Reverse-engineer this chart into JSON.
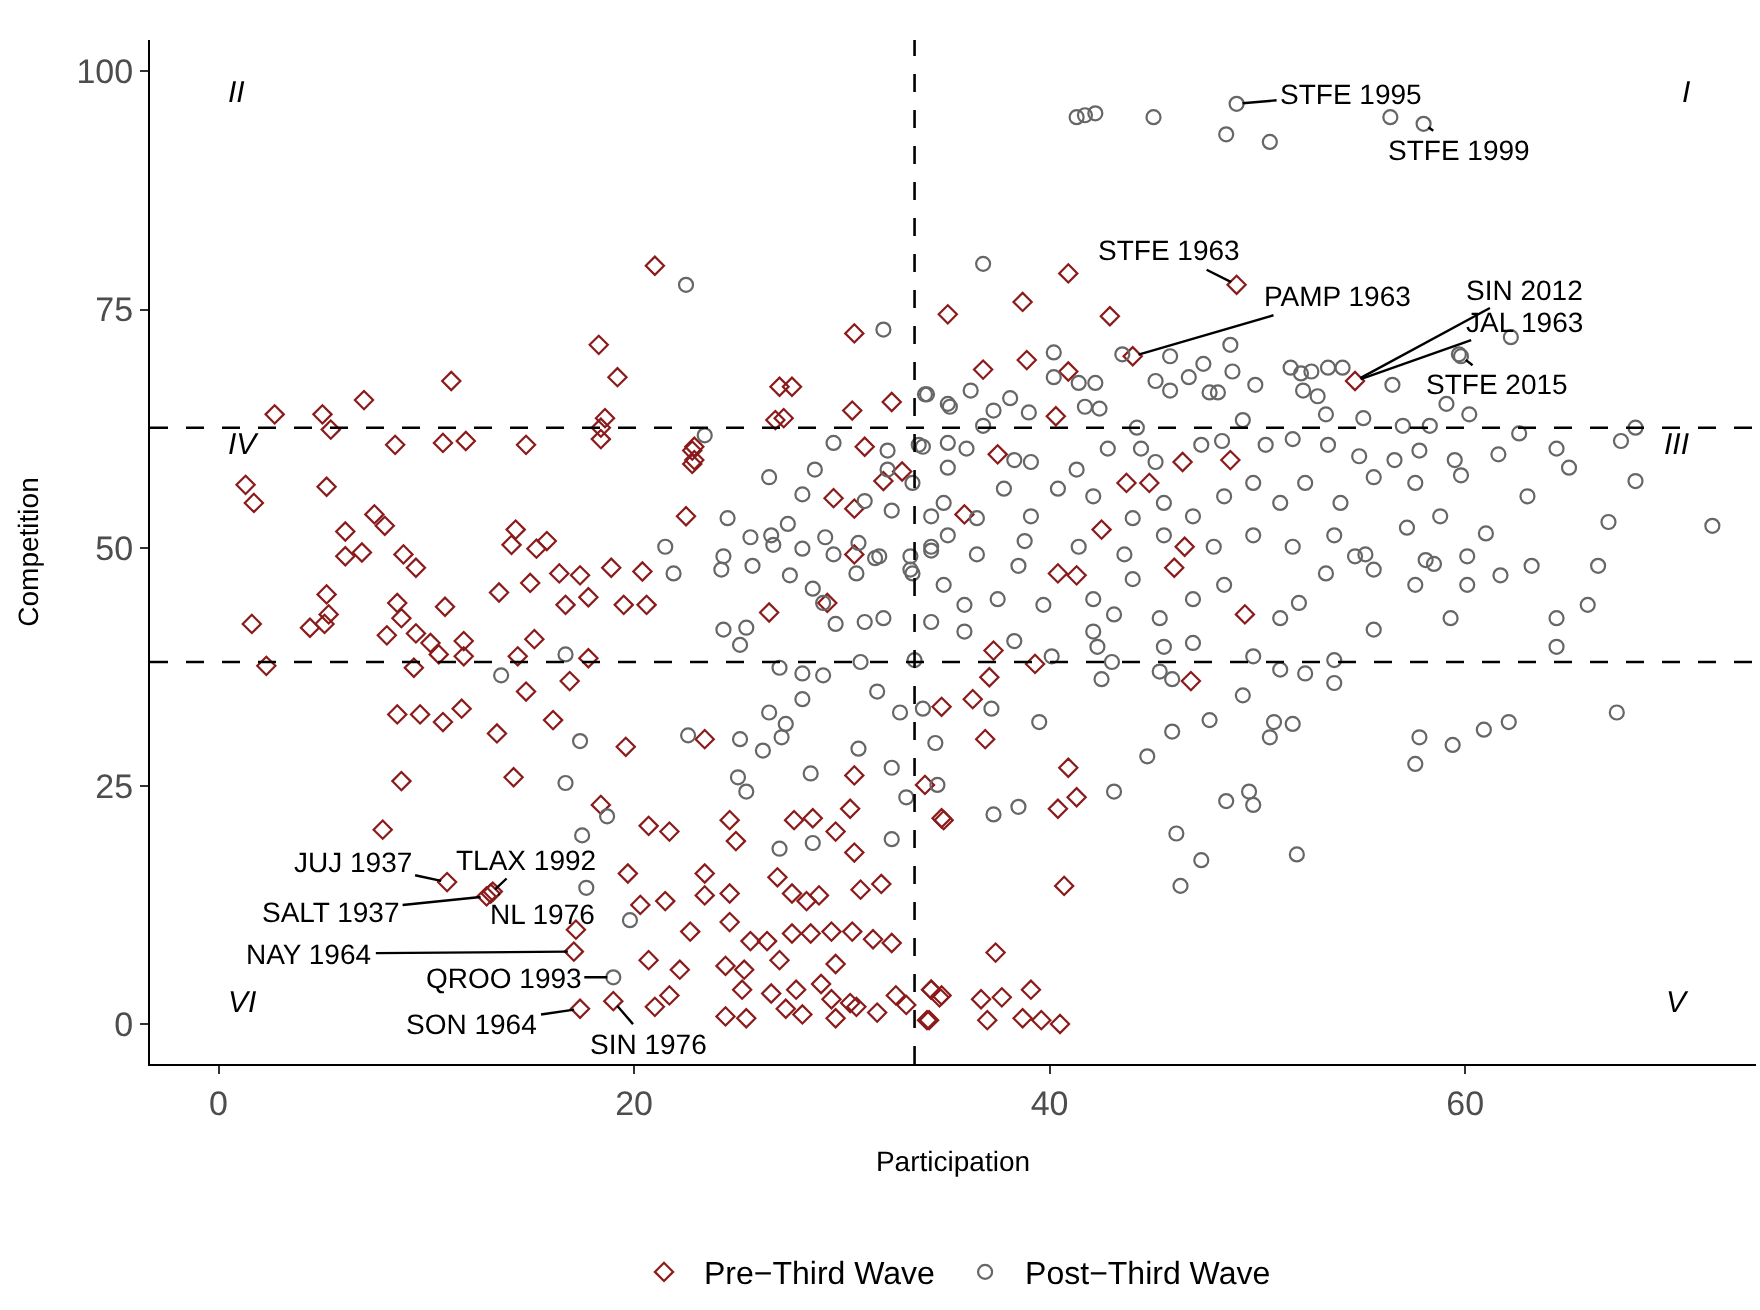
{
  "chart_data": {
    "type": "scatter",
    "xlabel": "Participation",
    "ylabel": "Competition",
    "xlim": [
      -3.3,
      74
    ],
    "ylim": [
      -4.2,
      103.3
    ],
    "xticks": [
      0,
      20,
      40,
      60
    ],
    "yticks": [
      0,
      25,
      50,
      75,
      100
    ],
    "legend": "bottom",
    "ref_lines": [
      {
        "axis": "x",
        "value": 33.5,
        "line_style": "dashed",
        "color": "#000000"
      },
      {
        "axis": "y",
        "value": 62.6,
        "line_style": "dashed",
        "color": "#000000"
      },
      {
        "axis": "y",
        "value": 38.0,
        "line_style": "dashed",
        "color": "#000000"
      }
    ],
    "series": [
      {
        "name": "Pre−Third Wave",
        "color": "#8b1a1a",
        "marker": "diamond",
        "x": [
          1.3,
          1.7,
          2.7,
          5.0,
          5.4,
          7.0,
          8.5,
          10.8,
          11.2,
          11.9,
          14.8,
          18.3,
          19.2,
          18.6,
          18.4,
          21.0,
          22.8,
          22.8,
          27.0,
          26.8,
          30.6,
          30.5,
          32.4,
          5.2,
          6.1,
          6.1,
          6.9,
          7.5,
          8.0,
          8.9,
          9.5,
          14.3,
          14.1,
          15.3,
          15.8,
          16.4,
          17.4,
          18.9,
          20.4,
          18.4,
          22.5,
          22.9,
          22.9,
          27.2,
          27.6,
          29.6,
          30.6,
          31.1,
          32.9,
          30.6,
          35.1,
          1.6,
          2.3,
          4.4,
          5.1,
          5.2,
          5.3,
          8.6,
          8.8,
          8.1,
          9.5,
          9.4,
          10.2,
          10.6,
          10.9,
          11.8,
          11.8,
          8.6,
          9.7,
          10.8,
          11.7,
          8.8,
          7.9,
          13.4,
          14.2,
          14.8,
          14.4,
          15.2,
          13.5,
          15.0,
          16.1,
          16.7,
          16.9,
          17.8,
          17.8,
          19.5,
          20.6,
          19.6,
          23.4,
          26.5,
          29.3,
          34.8,
          34.0,
          34.8,
          30.6,
          30.4,
          27.7,
          28.6,
          18.4,
          20.7,
          21.7,
          24.6,
          24.9,
          29.7,
          30.6,
          19.7,
          23.4,
          24.6,
          26.9,
          27.6,
          28.9,
          30.9,
          31.9,
          28.3,
          20.3,
          21.5,
          23.4,
          17.2,
          22.7,
          24.6,
          25.6,
          26.4,
          27.6,
          28.5,
          29.5,
          30.5,
          31.5,
          32.4,
          20.7,
          22.2,
          24.4,
          25.3,
          27.0,
          29.7,
          25.2,
          26.6,
          27.8,
          29.0,
          29.5,
          30.4,
          21.0,
          21.7,
          17.4,
          24.4,
          25.4,
          27.3,
          28.1,
          29.7,
          30.7,
          31.7,
          32.6,
          33.1,
          34.3,
          34.2,
          34.8,
          11.0,
          13.1,
          12.9,
          13.2,
          17.1,
          19.0,
          36.3,
          36.9,
          37.3,
          37.1,
          39.3,
          40.9,
          41.3,
          40.4,
          34.9,
          40.7,
          37.4,
          34.3,
          34.7,
          34.1,
          36.7,
          37.7,
          39.1,
          37.0,
          38.7,
          39.6,
          40.5,
          46.8,
          49.4,
          41.3,
          46.0,
          40.9,
          38.7,
          42.9,
          36.8,
          38.9,
          40.9,
          40.3,
          37.5,
          46.4,
          43.7,
          44.8,
          48.7,
          35.9,
          42.5,
          46.5,
          40.4,
          32.0,
          49.0,
          44.0,
          54.7
        ],
        "values": [
          56.6,
          54.7,
          64.0,
          64.0,
          62.4,
          65.5,
          60.8,
          61.0,
          67.5,
          61.2,
          60.8,
          71.3,
          67.9,
          63.6,
          62.6,
          79.6,
          60.2,
          58.8,
          66.9,
          63.4,
          72.5,
          64.4,
          65.3,
          56.4,
          51.7,
          49.1,
          49.5,
          53.5,
          52.3,
          49.3,
          47.9,
          51.9,
          50.3,
          49.9,
          50.7,
          47.3,
          47.1,
          47.9,
          47.5,
          61.4,
          53.3,
          60.6,
          59.2,
          63.6,
          66.9,
          55.2,
          54.1,
          60.6,
          58.0,
          49.3,
          74.5,
          42.0,
          37.6,
          41.6,
          42.0,
          45.1,
          43.0,
          44.2,
          42.6,
          40.8,
          41.0,
          37.4,
          40.0,
          38.8,
          43.8,
          40.2,
          38.6,
          32.5,
          32.5,
          31.7,
          33.1,
          25.5,
          20.4,
          30.5,
          25.9,
          34.9,
          38.6,
          40.4,
          45.3,
          46.3,
          31.9,
          44.0,
          36.0,
          44.8,
          38.4,
          44.0,
          44.0,
          29.1,
          29.9,
          43.2,
          44.2,
          33.3,
          25.1,
          21.6,
          26.1,
          22.6,
          21.4,
          21.6,
          23.0,
          20.8,
          20.2,
          21.4,
          19.2,
          20.2,
          18.0,
          15.8,
          15.8,
          13.7,
          15.4,
          13.7,
          13.5,
          14.1,
          14.7,
          12.9,
          12.5,
          12.9,
          13.5,
          9.9,
          9.7,
          10.7,
          8.7,
          8.7,
          9.5,
          9.5,
          9.7,
          9.7,
          8.9,
          8.5,
          6.7,
          5.7,
          6.1,
          5.7,
          6.7,
          6.3,
          3.6,
          3.2,
          3.6,
          4.2,
          2.6,
          2.2,
          1.8,
          3.0,
          1.6,
          0.8,
          0.6,
          1.6,
          1.0,
          0.6,
          1.8,
          1.2,
          3.0,
          2.0,
          3.6,
          0.4,
          3.0,
          14.9,
          13.7,
          13.4,
          13.9,
          7.6,
          2.4,
          34.1,
          29.9,
          39.2,
          36.4,
          37.8,
          26.9,
          23.8,
          22.6,
          21.4,
          14.5,
          7.5,
          3.6,
          2.8,
          0.4,
          2.6,
          2.8,
          3.6,
          0.4,
          0.6,
          0.4,
          0.0,
          36.0,
          43.0,
          47.1,
          47.9,
          78.8,
          75.8,
          74.3,
          68.7,
          69.7,
          68.5,
          63.8,
          59.8,
          59.0,
          56.8,
          56.8,
          59.2,
          53.5,
          51.9,
          50.1,
          47.3,
          57.0,
          77.6,
          70.1,
          67.5
        ]
      },
      {
        "name": "Post−Third Wave",
        "color": "#666666",
        "marker": "circle",
        "x": [
          41.3,
          41.7,
          42.2,
          45.0,
          49.0,
          48.5,
          50.6,
          56.4,
          58.0,
          22.5,
          36.8,
          32.0,
          62.2,
          59.8,
          48.7,
          43.5,
          68.2,
          67.5,
          71.9,
          68.2,
          66.9,
          66.4,
          65.0,
          64.4,
          62.6,
          61.6,
          63.0,
          61.0,
          67.3,
          64.4,
          64.4,
          65.9,
          62.1,
          60.9,
          59.4,
          57.8,
          57.6,
          55.6,
          59.3,
          51.9,
          50.8,
          50.6,
          51.7,
          49.3,
          47.7,
          45.9,
          44.7,
          43.1,
          46.1,
          47.3,
          46.3,
          49.6,
          49.8,
          48.5,
          38.5,
          37.3,
          39.5,
          34.5,
          34.6,
          33.1,
          32.4,
          33.9,
          32.8,
          37.2,
          42.5,
          45.9,
          51.1,
          53.7,
          52.3,
          13.6,
          16.7,
          17.4,
          16.7,
          18.7,
          17.5,
          17.7,
          19.8,
          19.0,
          22.6,
          25.1,
          25.0,
          25.4,
          26.2,
          27.0,
          24.3,
          25.4,
          25.1,
          27.0,
          28.1,
          28.1,
          26.5,
          27.3,
          27.1,
          28.5,
          28.6,
          30.8,
          32.4,
          31.7,
          30.9,
          29.1,
          29.7,
          31.1,
          32.0,
          34.3,
          33.5,
          27.5,
          28.6,
          29.1,
          30.7,
          31.8,
          33.4,
          34.3,
          24.2,
          25.7,
          26.7,
          21.5,
          21.9,
          23.4,
          26.5,
          28.1,
          28.7,
          29.6,
          24.5,
          25.6,
          26.6,
          27.4,
          28.1,
          29.2,
          30.8,
          31.1,
          32.2,
          32.2,
          32.4,
          33.4,
          34.0,
          35.1,
          33.9,
          35.1,
          34.3,
          35.1,
          33.3,
          31.6,
          29.6,
          24.3,
          34.1,
          35.2,
          36.2,
          37.3,
          38.1,
          39.0,
          40.2,
          40.2,
          41.4,
          42.2,
          41.7,
          42.4,
          36.8,
          44.2,
          45.1,
          45.8,
          45.8,
          46.7,
          47.4,
          47.7,
          48.1,
          48.8,
          49.3,
          49.9,
          51.6,
          52.1,
          52.6,
          53.4,
          54.1,
          52.2,
          52.9,
          53.3,
          55.1,
          56.5,
          57.0,
          58.3,
          59.1,
          60.2,
          59.7,
          33.7,
          35.1,
          36.0,
          38.3,
          39.1,
          41.3,
          42.8,
          44.4,
          45.1,
          47.3,
          48.3,
          50.4,
          51.7,
          53.4,
          54.9,
          56.6,
          57.8,
          59.5,
          59.8,
          57.6,
          55.6,
          54.0,
          52.3,
          51.1,
          49.8,
          48.4,
          46.9,
          45.5,
          44.0,
          42.1,
          40.4,
          39.1,
          37.8,
          36.5,
          34.9,
          34.3,
          36.5,
          38.8,
          41.4,
          43.6,
          45.5,
          47.9,
          49.8,
          51.7,
          53.7,
          55.2,
          57.2,
          58.8,
          58.1,
          60.1,
          33.3,
          34.9,
          35.9,
          37.5,
          38.5,
          39.7,
          42.1,
          43.1,
          44.0,
          45.3,
          46.9,
          48.4,
          51.1,
          52.0,
          53.3,
          54.7,
          55.6,
          57.6,
          58.5,
          60.1,
          61.7,
          63.2,
          35.9,
          38.3,
          42.1,
          45.5,
          46.9,
          49.8,
          53.7,
          43.0,
          45.3,
          40.1,
          42.3
        ],
        "values": [
          95.2,
          95.4,
          95.6,
          95.2,
          96.6,
          93.4,
          92.6,
          95.2,
          94.5,
          77.6,
          79.8,
          72.9,
          72.1,
          70.1,
          71.3,
          70.3,
          62.6,
          61.2,
          52.3,
          57.0,
          52.7,
          48.1,
          58.4,
          60.4,
          62.0,
          59.8,
          55.4,
          51.5,
          32.7,
          39.6,
          42.6,
          44.0,
          31.7,
          30.9,
          29.3,
          30.1,
          27.3,
          41.4,
          42.6,
          17.8,
          31.7,
          30.1,
          31.5,
          34.5,
          31.9,
          30.7,
          28.1,
          24.4,
          20.0,
          17.2,
          14.5,
          24.4,
          23.0,
          23.4,
          22.8,
          22.0,
          31.7,
          29.5,
          25.1,
          23.8,
          19.4,
          33.1,
          32.7,
          33.1,
          36.2,
          36.2,
          37.2,
          35.8,
          36.8,
          36.6,
          38.8,
          29.7,
          25.3,
          21.8,
          19.8,
          14.3,
          10.9,
          4.9,
          30.3,
          29.9,
          25.9,
          24.4,
          28.7,
          18.4,
          41.4,
          41.6,
          39.8,
          37.4,
          36.8,
          34.1,
          32.7,
          31.5,
          30.1,
          26.3,
          19.0,
          28.9,
          26.9,
          34.9,
          38.0,
          36.6,
          42.0,
          42.2,
          42.6,
          42.2,
          38.2,
          47.1,
          45.7,
          44.2,
          47.3,
          49.1,
          47.3,
          49.7,
          47.7,
          48.1,
          50.3,
          50.1,
          47.3,
          61.8,
          57.4,
          55.6,
          58.2,
          61.0,
          53.1,
          51.1,
          51.3,
          52.5,
          49.9,
          51.1,
          50.5,
          54.9,
          60.2,
          58.2,
          53.9,
          56.8,
          66.1,
          65.1,
          60.6,
          61.0,
          53.3,
          51.3,
          49.1,
          48.9,
          49.3,
          49.1,
          66.1,
          64.8,
          66.5,
          64.4,
          65.7,
          64.2,
          70.5,
          67.9,
          67.3,
          67.3,
          64.8,
          64.6,
          62.8,
          62.6,
          67.5,
          66.5,
          70.1,
          67.9,
          69.3,
          66.3,
          66.3,
          68.5,
          63.4,
          67.1,
          68.9,
          68.3,
          68.5,
          68.9,
          68.9,
          66.5,
          65.9,
          64.0,
          63.6,
          67.1,
          62.8,
          62.8,
          65.1,
          64.0,
          70.3,
          60.8,
          58.4,
          60.4,
          59.2,
          59.0,
          58.2,
          60.4,
          60.4,
          59.0,
          60.8,
          61.2,
          60.8,
          61.4,
          60.8,
          59.6,
          59.2,
          60.2,
          59.2,
          57.6,
          56.8,
          57.4,
          54.7,
          56.8,
          54.7,
          56.8,
          55.4,
          53.3,
          54.7,
          53.1,
          55.4,
          56.2,
          53.3,
          56.2,
          53.1,
          54.7,
          50.1,
          49.3,
          50.7,
          50.1,
          49.3,
          51.3,
          50.1,
          51.3,
          50.1,
          51.3,
          49.3,
          52.1,
          53.3,
          48.7,
          49.1,
          47.7,
          46.1,
          44.0,
          44.6,
          48.1,
          44.0,
          44.6,
          43.0,
          46.7,
          42.6,
          44.6,
          46.1,
          42.6,
          44.2,
          47.3,
          49.1,
          47.7,
          46.1,
          48.3,
          46.1,
          47.1,
          48.1,
          41.2,
          40.2,
          41.2,
          39.6,
          40.0,
          38.6,
          38.2,
          38.0,
          37.0,
          38.6,
          39.6
        ]
      }
    ],
    "annotations": [
      {
        "text": "STFE 1995",
        "x": 49.0,
        "y": 96.6
      },
      {
        "text": "STFE 1999",
        "x": 58.0,
        "y": 94.5
      },
      {
        "text": "STFE 1963",
        "x": 49.0,
        "y": 77.6
      },
      {
        "text": "PAMP 1963",
        "x": 44.0,
        "y": 70.1
      },
      {
        "text": "SIN 2012",
        "x": 54.7,
        "y": 67.5
      },
      {
        "text": "JAL 1963",
        "x": 54.7,
        "y": 67.5
      },
      {
        "text": "STFE 2015",
        "x": 59.8,
        "y": 70.1
      },
      {
        "text": "JUJ 1937",
        "x": 11.0,
        "y": 14.9
      },
      {
        "text": "TLAX 1992",
        "x": 13.1,
        "y": 13.7
      },
      {
        "text": "SALT 1937",
        "x": 12.9,
        "y": 13.4
      },
      {
        "text": "NL 1976",
        "x": 13.2,
        "y": 13.9
      },
      {
        "text": "NAY 1964",
        "x": 17.1,
        "y": 7.6
      },
      {
        "text": "QROO 1993",
        "x": 19.0,
        "y": 4.9
      },
      {
        "text": "SON 1964",
        "x": 17.4,
        "y": 1.6
      },
      {
        "text": "SIN 1976",
        "x": 19.0,
        "y": 2.4
      },
      "I",
      "II",
      "III",
      "IV",
      "V",
      "VI"
    ]
  }
}
